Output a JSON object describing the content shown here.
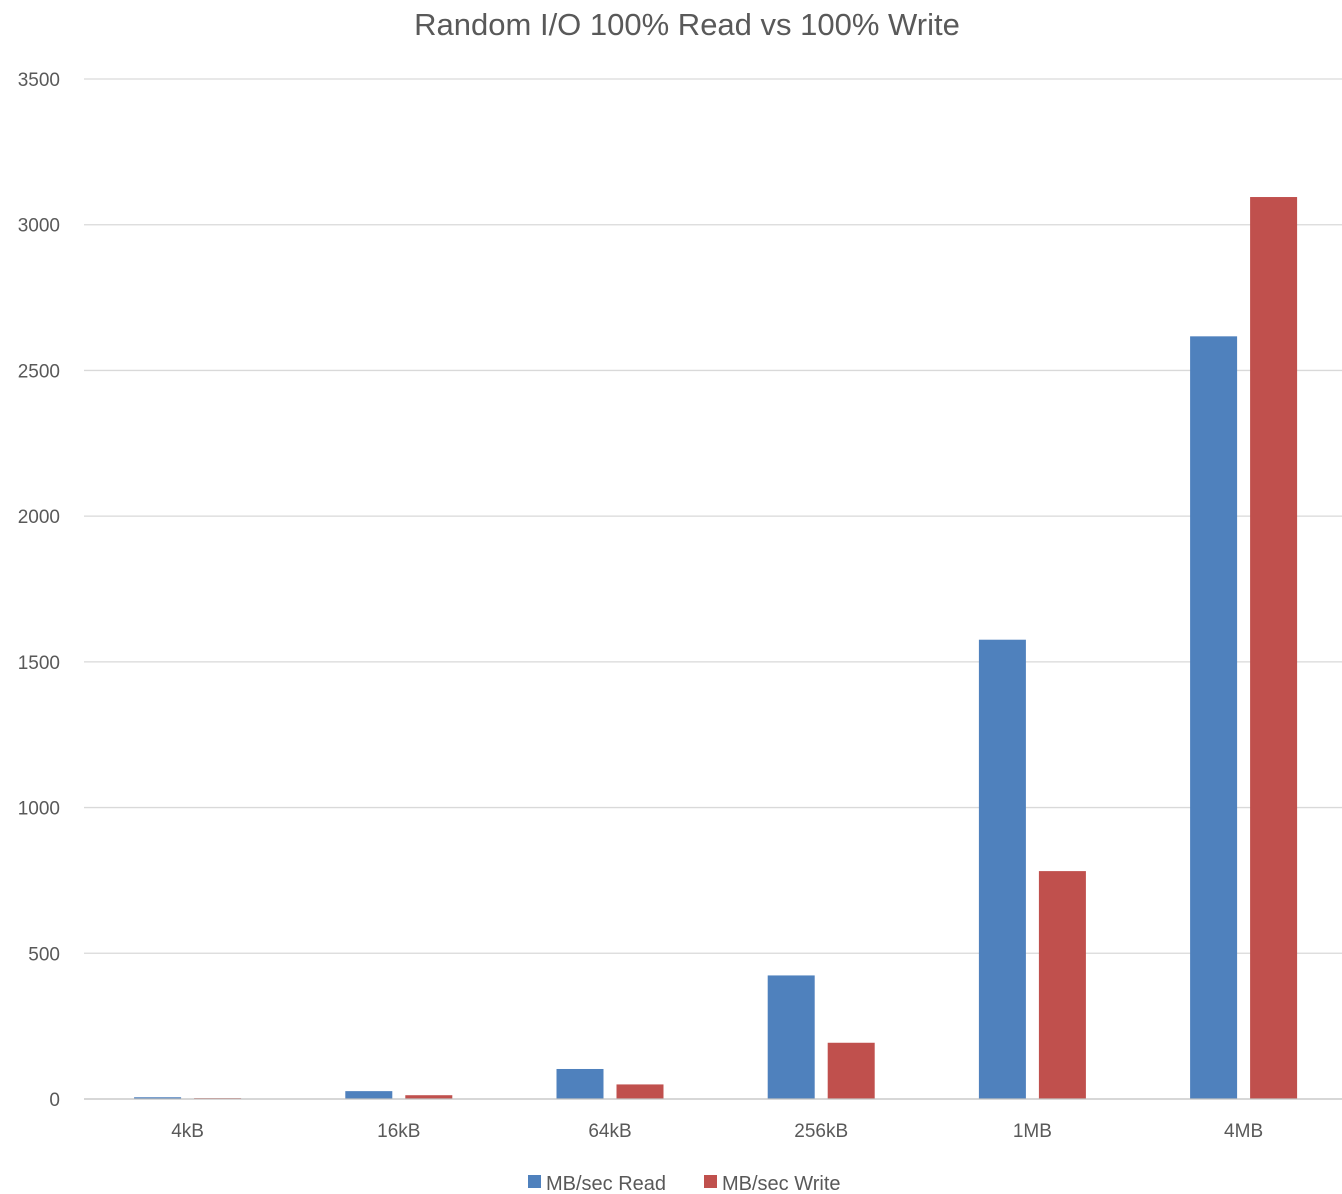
{
  "chart_data": {
    "type": "bar",
    "title": "Random I/O 100% Read vs 100% Write",
    "categories": [
      "4kB",
      "16kB",
      "64kB",
      "256kB",
      "1MB",
      "4MB"
    ],
    "series": [
      {
        "name": "MB/sec Read",
        "color": "#4f81bd",
        "values": [
          6,
          27,
          103,
          424,
          1576,
          2617
        ]
      },
      {
        "name": "MB/sec Write",
        "color": "#c0504d",
        "values": [
          3,
          13,
          50,
          193,
          782,
          3095
        ]
      }
    ],
    "xlabel": "",
    "ylabel": "",
    "ylim": [
      0,
      3500
    ],
    "yticks": [
      0,
      500,
      1000,
      1500,
      2000,
      2500,
      3000,
      3500
    ],
    "grid": true,
    "legend": "bottom"
  }
}
